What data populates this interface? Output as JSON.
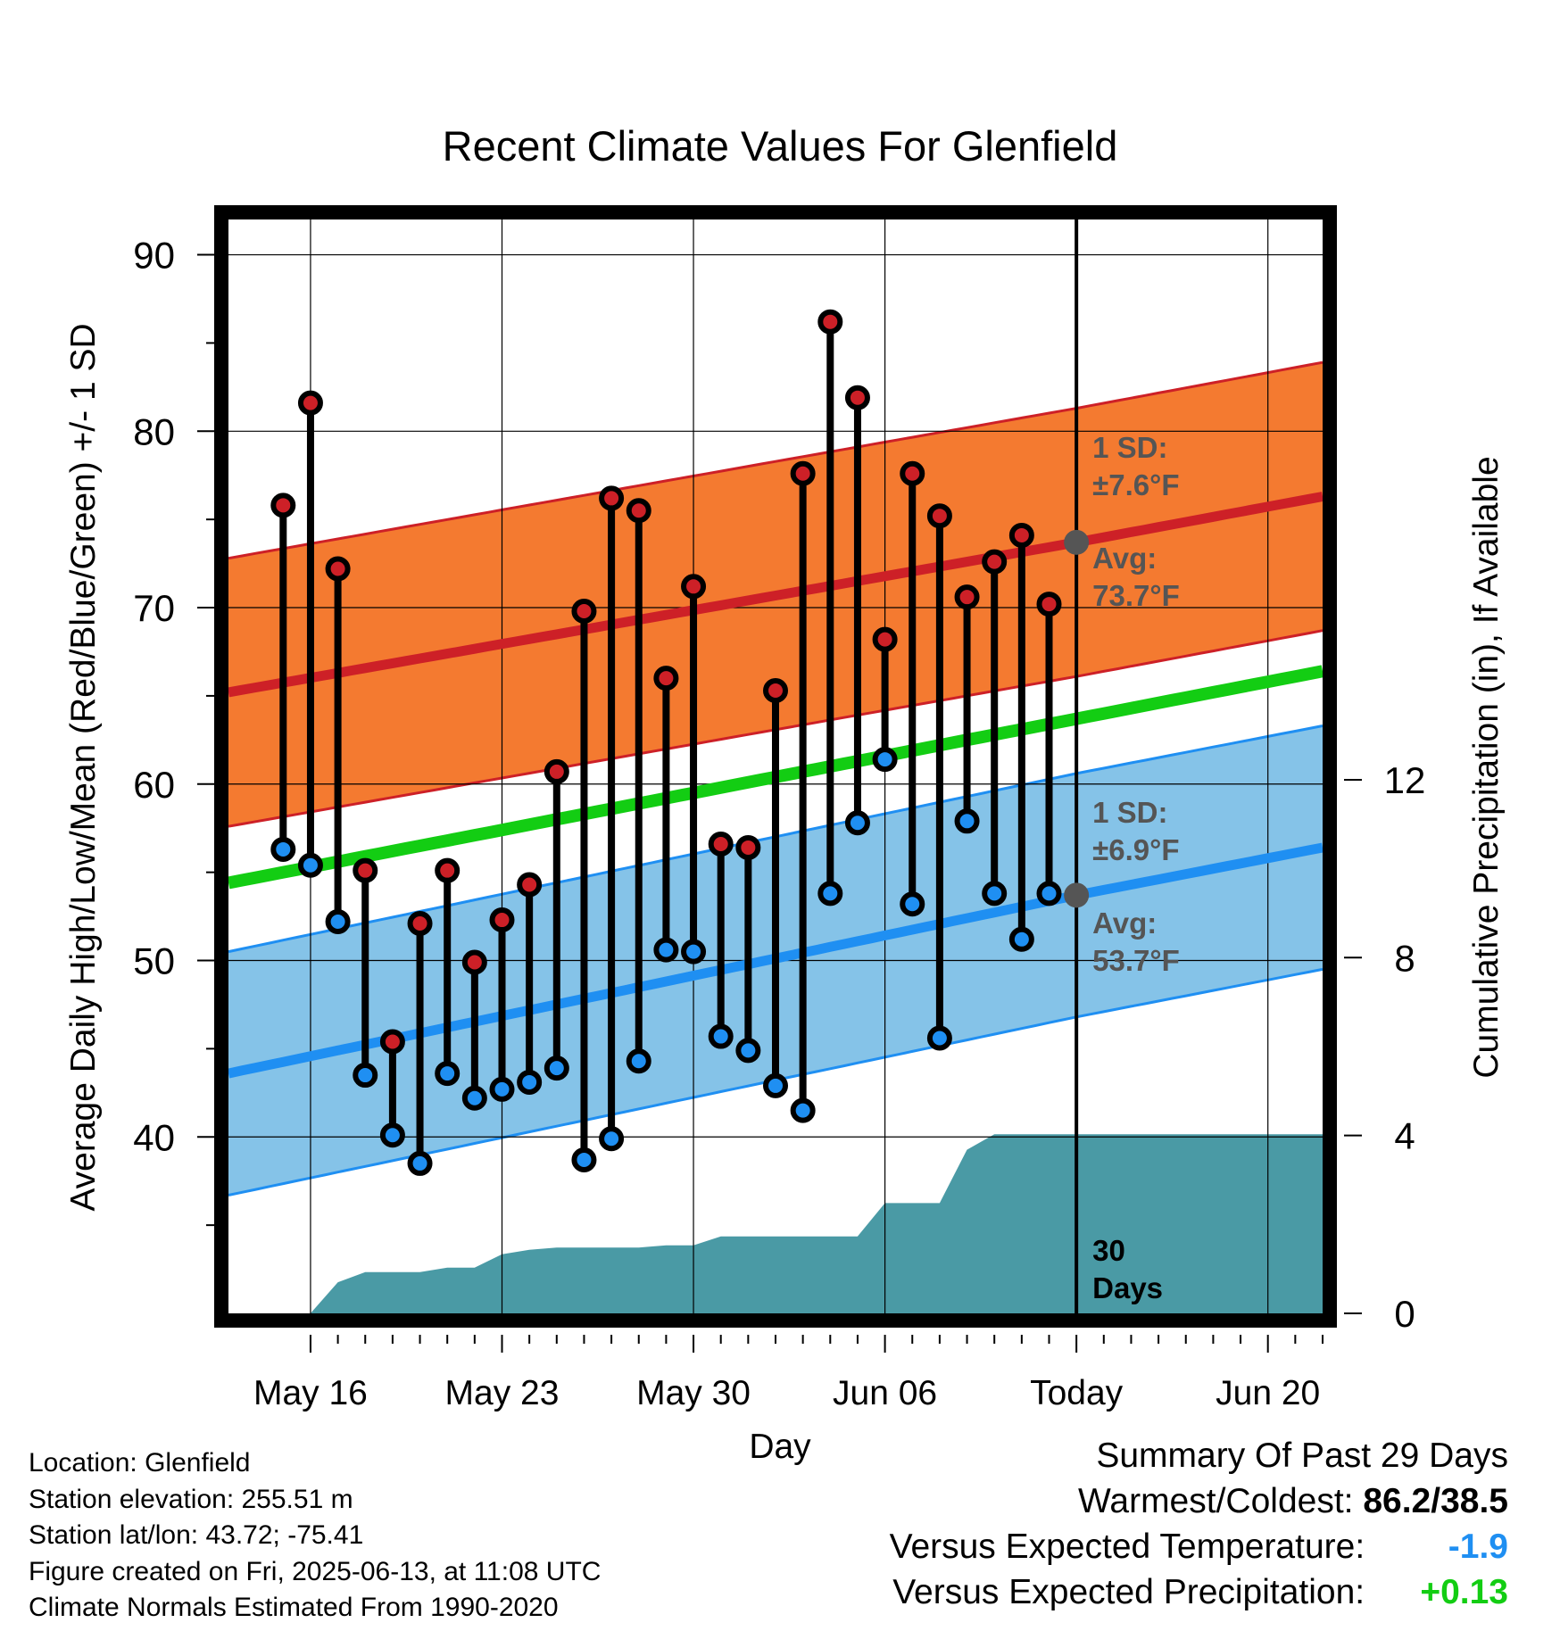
{
  "chart_data": {
    "type": "line",
    "title": "Recent Climate Values For Glenfield",
    "xlabel": "Day",
    "ylabel_left": "Average Daily High/Low/Mean (Red/Blue/Green) +/- 1 SD",
    "ylabel_right": "Cumulative Precipitation (in), If Available",
    "x_tick_labels": [
      "May 16",
      "May 23",
      "May 30",
      "Jun 06",
      "Today",
      "Jun 20"
    ],
    "y_left_ticks": [
      "40",
      "50",
      "60",
      "70",
      "80",
      "90"
    ],
    "y_right_ticks": [
      "0",
      "4",
      "8",
      "12"
    ],
    "ylim_left": [
      30,
      92
    ],
    "ylim_right": [
      0,
      24.6
    ],
    "x_range_days": [
      "May 13",
      "Jun 22"
    ],
    "today_date": "Jun 13",
    "grid": true,
    "normals": {
      "high_avg": {
        "start": 65.2,
        "today": 73.7,
        "end": 76.3
      },
      "high_sd": 7.6,
      "low_avg": {
        "start": 43.6,
        "today": 53.7,
        "end": 56.4
      },
      "low_sd": 6.9,
      "mean": {
        "start": 54.4,
        "end": 66.4
      }
    },
    "daily": {
      "dates": [
        "May 15",
        "May 16",
        "May 17",
        "May 18",
        "May 19",
        "May 20",
        "May 21",
        "May 22",
        "May 23",
        "May 24",
        "May 25",
        "May 26",
        "May 27",
        "May 28",
        "May 29",
        "May 30",
        "May 31",
        "Jun 01",
        "Jun 02",
        "Jun 03",
        "Jun 04",
        "Jun 05",
        "Jun 06",
        "Jun 07",
        "Jun 08",
        "Jun 09",
        "Jun 10",
        "Jun 11",
        "Jun 12"
      ],
      "high": [
        75.8,
        81.6,
        72.2,
        55.1,
        45.4,
        52.1,
        55.1,
        49.9,
        52.3,
        54.3,
        60.7,
        69.8,
        76.2,
        75.5,
        66.0,
        71.2,
        56.6,
        56.4,
        65.3,
        77.6,
        86.2,
        81.9,
        68.2,
        77.6,
        75.2,
        70.6,
        72.6,
        74.1,
        70.2
      ],
      "low": [
        56.3,
        55.4,
        52.2,
        43.5,
        40.1,
        38.5,
        43.6,
        42.2,
        42.7,
        43.1,
        43.9,
        38.7,
        39.9,
        44.3,
        50.6,
        50.5,
        45.7,
        44.9,
        42.9,
        41.5,
        53.8,
        57.8,
        61.4,
        53.2,
        45.6,
        57.9,
        53.8,
        51.2,
        53.8
      ]
    },
    "precip_cumulative": {
      "x_days": [
        3,
        4,
        5,
        6,
        7,
        8,
        9,
        10,
        11,
        12,
        13,
        14,
        15,
        16,
        17,
        18,
        19,
        20,
        21,
        22,
        23,
        24,
        25,
        26,
        27,
        28,
        29,
        30,
        31,
        32,
        33,
        34,
        35,
        36,
        37,
        38,
        39,
        40
      ],
      "values": [
        0.0,
        0.7,
        0.93,
        0.93,
        0.93,
        1.03,
        1.03,
        1.33,
        1.43,
        1.48,
        1.48,
        1.48,
        1.48,
        1.53,
        1.53,
        1.73,
        1.73,
        1.73,
        1.73,
        1.73,
        1.73,
        2.48,
        2.48,
        2.48,
        3.68,
        4.03,
        4.03,
        4.03,
        4.03,
        4.03,
        4.03,
        4.03,
        4.03,
        4.03,
        4.03,
        4.03,
        4.03,
        4.03
      ]
    },
    "annotations": {
      "high_sd_line1": "1 SD:",
      "high_sd_line2": "±7.6°F",
      "high_avg_line1": "Avg:",
      "high_avg_line2": "73.7°F",
      "low_sd_line1": "1 SD:",
      "low_sd_line2": "±6.9°F",
      "low_avg_line1": "Avg:",
      "low_avg_line2": "53.7°F",
      "days_line1": "30",
      "days_line2": "Days"
    },
    "colors": {
      "high_band": "#f47a30",
      "high_line": "#cd2027",
      "low_band": "#85c3e8",
      "low_line": "#1f8ff2",
      "mean_line": "#13cd13",
      "precip_fill": "#4a9aa5",
      "high_dot": "#cd2027",
      "low_dot": "#1f8ff2",
      "annotation_text": "#555555"
    }
  },
  "info": {
    "location": "Location: Glenfield",
    "elevation": "Station elevation: 255.51 m",
    "latlon": "Station lat/lon: 43.72; -75.41",
    "created": "Figure created on Fri, 2025-06-13, at 11:08 UTC",
    "normals": "Climate Normals Estimated From 1990-2020"
  },
  "summary": {
    "title": "Summary Of Past 29 Days",
    "warm_cold_label": "Warmest/Coldest:",
    "warm_cold_value": "86.2/38.5",
    "temp_label": "Versus Expected Temperature:",
    "temp_value": "-1.9",
    "temp_color": "#1f8ff2",
    "precip_label": "Versus Expected Precipitation:",
    "precip_value": "+0.13",
    "precip_color": "#13cd13"
  }
}
